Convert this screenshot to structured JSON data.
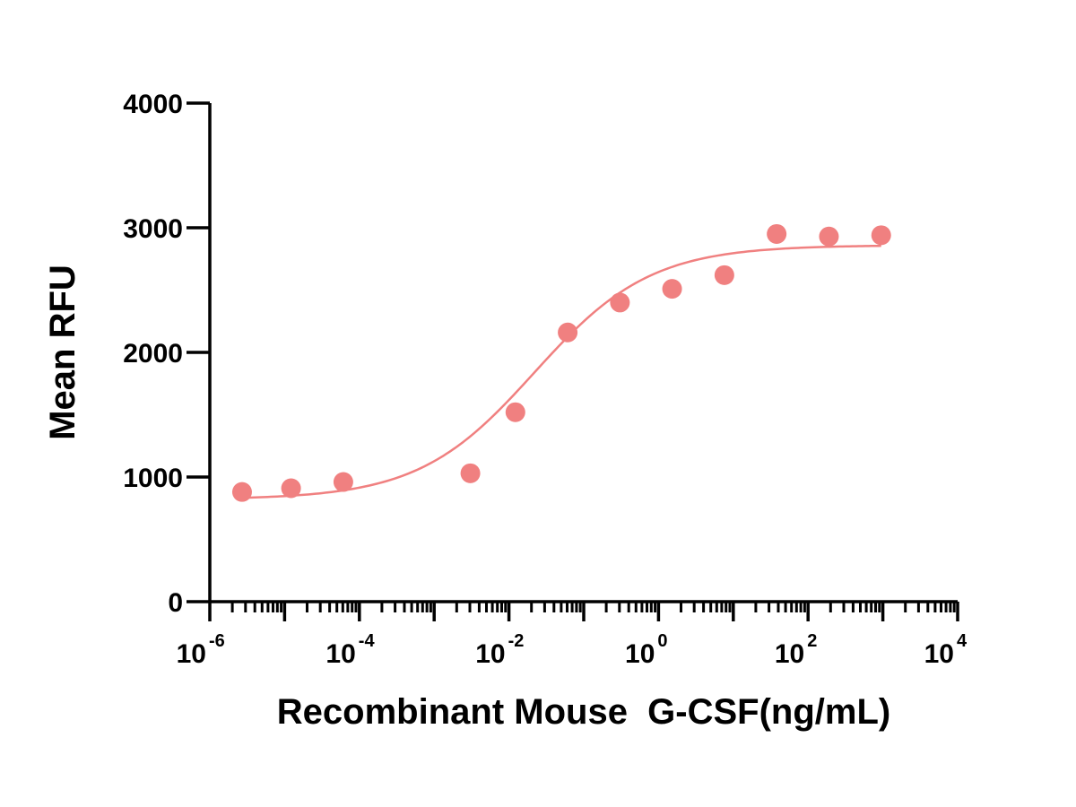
{
  "chart_data": {
    "type": "scatter",
    "title": "",
    "xlabel": "Recombinant Mouse  G-CSF(ng/mL)",
    "ylabel": "Mean RFU",
    "x_scale": "log10",
    "xlim": [
      1e-06,
      10000
    ],
    "ylim": [
      0,
      4000
    ],
    "grid": false,
    "legend": "none",
    "y_ticks": [
      {
        "value": 0,
        "label": "0"
      },
      {
        "value": 1000,
        "label": "1000"
      },
      {
        "value": 2000,
        "label": "2000"
      },
      {
        "value": 3000,
        "label": "3000"
      },
      {
        "value": 4000,
        "label": "4000"
      }
    ],
    "x_ticks": [
      {
        "value": 1e-06,
        "base": "10",
        "exponent": "-6"
      },
      {
        "value": 0.0001,
        "base": "10",
        "exponent": "-4"
      },
      {
        "value": 0.01,
        "base": "10",
        "exponent": "-2"
      },
      {
        "value": 1,
        "base": "10",
        "exponent": "0"
      },
      {
        "value": 100,
        "base": "10",
        "exponent": "2"
      },
      {
        "value": 10000,
        "base": "10",
        "exponent": "4"
      }
    ],
    "series": [
      {
        "color": "#f08080",
        "points": [
          {
            "x": 2.7e-06,
            "y": 880
          },
          {
            "x": 1.22e-05,
            "y": 910
          },
          {
            "x": 6.1e-05,
            "y": 960
          },
          {
            "x": 0.00305,
            "y": 1030
          },
          {
            "x": 0.0122,
            "y": 1520
          },
          {
            "x": 0.061,
            "y": 2160
          },
          {
            "x": 0.305,
            "y": 2400
          },
          {
            "x": 1.52,
            "y": 2510
          },
          {
            "x": 7.6,
            "y": 2620
          },
          {
            "x": 38,
            "y": 2950
          },
          {
            "x": 190,
            "y": 2930
          },
          {
            "x": 950,
            "y": 2940
          }
        ],
        "fit": {
          "model": "four-parameter logistic",
          "bottom": 820,
          "top": 2860,
          "ec50": 0.022,
          "hill": 0.56
        }
      }
    ]
  }
}
